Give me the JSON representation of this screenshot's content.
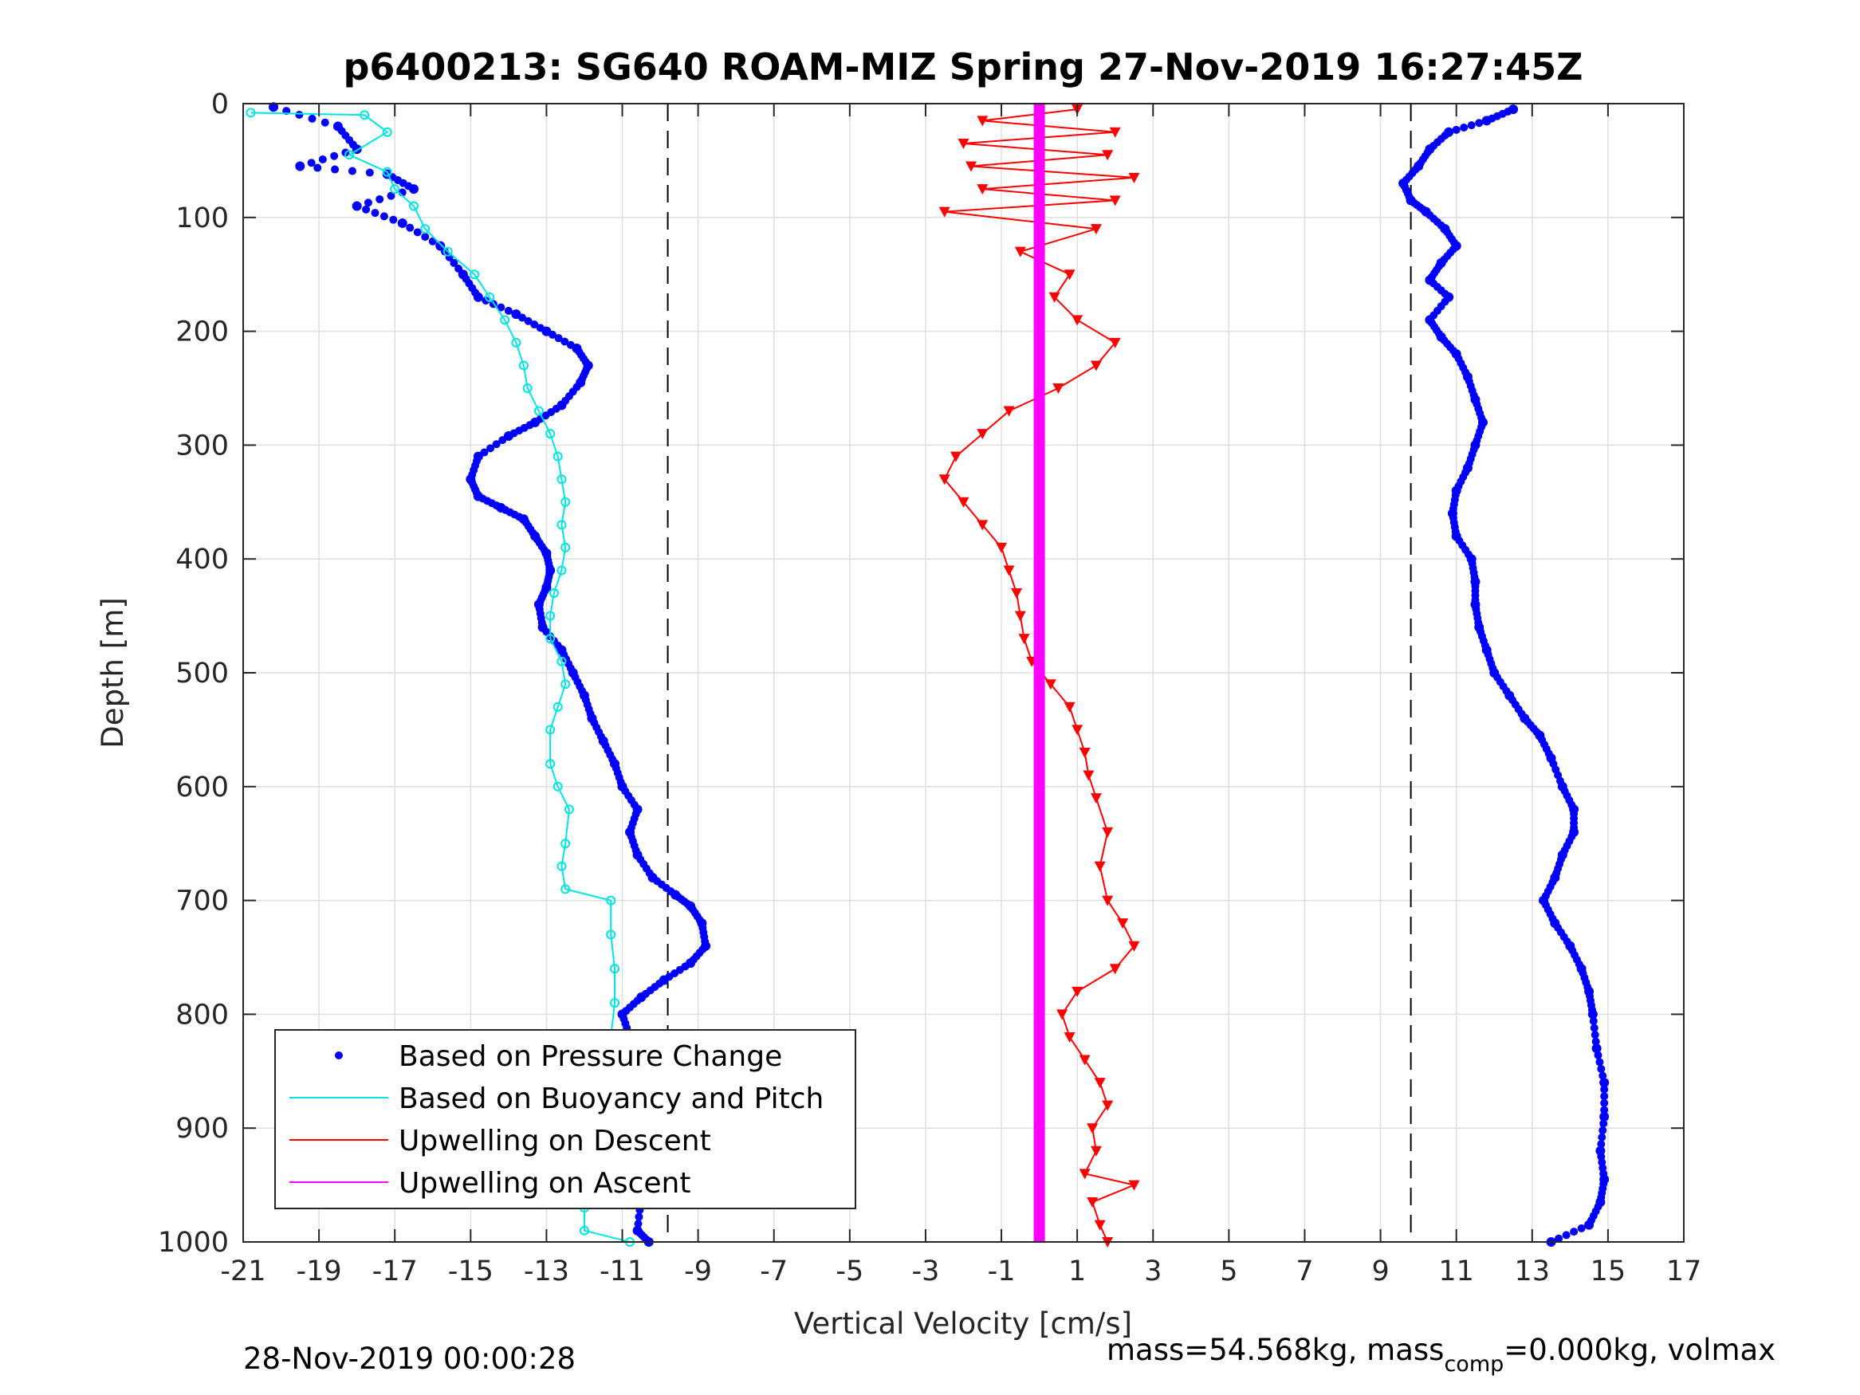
{
  "chart_data": {
    "type": "scatter",
    "title": "p6400213: SG640 ROAM-MIZ Spring 27-Nov-2019 16:27:45Z",
    "xlabel": "Vertical Velocity [cm/s]",
    "ylabel": "Depth [m]",
    "xlim": [
      -21,
      17
    ],
    "ylim": [
      0,
      1000
    ],
    "y_reversed": true,
    "grid": true,
    "x_ticks": [
      -21,
      -19,
      -17,
      -15,
      -13,
      -11,
      -9,
      -7,
      -5,
      -3,
      -1,
      1,
      3,
      5,
      7,
      9,
      11,
      13,
      15,
      17
    ],
    "y_ticks": [
      0,
      100,
      200,
      300,
      400,
      500,
      600,
      700,
      800,
      900,
      1000
    ],
    "x_tick_labels": [
      "-21",
      "-19",
      "-17",
      "-15",
      "-13",
      "-11",
      "-9",
      "-7",
      "-5",
      "-3",
      "-1",
      "1",
      "3",
      "5",
      "7",
      "9",
      "11",
      "13",
      "15",
      "17"
    ],
    "y_tick_labels": [
      "0",
      "100",
      "200",
      "300",
      "400",
      "500",
      "600",
      "700",
      "800",
      "900",
      "1000"
    ],
    "reference_lines_x": [
      -9.8,
      9.8
    ],
    "legend_position": "bottom-left",
    "series": [
      {
        "name": "Based on Pressure Change",
        "style": "dots",
        "color": "#0000ff",
        "points": [
          [
            -20.2,
            3
          ],
          [
            -18.5,
            20
          ],
          [
            -18.0,
            40
          ],
          [
            -19.5,
            55
          ],
          [
            -17.2,
            62
          ],
          [
            -16.5,
            75
          ],
          [
            -18.0,
            90
          ],
          [
            -16.8,
            105
          ],
          [
            -15.8,
            125
          ],
          [
            -15.2,
            150
          ],
          [
            -14.8,
            170
          ],
          [
            -13.8,
            185
          ],
          [
            -13.0,
            200
          ],
          [
            -12.2,
            215
          ],
          [
            -11.9,
            230
          ],
          [
            -12.1,
            245
          ],
          [
            -12.6,
            265
          ],
          [
            -13.3,
            280
          ],
          [
            -14.0,
            292
          ],
          [
            -14.8,
            310
          ],
          [
            -15.0,
            330
          ],
          [
            -14.8,
            345
          ],
          [
            -14.2,
            355
          ],
          [
            -13.6,
            365
          ],
          [
            -13.3,
            380
          ],
          [
            -13.0,
            395
          ],
          [
            -12.9,
            410
          ],
          [
            -13.0,
            425
          ],
          [
            -13.2,
            440
          ],
          [
            -13.1,
            460
          ],
          [
            -12.6,
            480
          ],
          [
            -12.3,
            500
          ],
          [
            -12.0,
            520
          ],
          [
            -11.8,
            540
          ],
          [
            -11.5,
            560
          ],
          [
            -11.2,
            580
          ],
          [
            -11.0,
            600
          ],
          [
            -10.6,
            620
          ],
          [
            -10.8,
            640
          ],
          [
            -10.6,
            660
          ],
          [
            -10.2,
            680
          ],
          [
            -9.6,
            695
          ],
          [
            -9.2,
            705
          ],
          [
            -8.9,
            720
          ],
          [
            -8.8,
            740
          ],
          [
            -9.2,
            755
          ],
          [
            -9.9,
            770
          ],
          [
            -10.5,
            785
          ],
          [
            -11.0,
            800
          ],
          [
            -10.8,
            820
          ],
          [
            -10.4,
            845
          ],
          [
            -10.6,
            865
          ],
          [
            -10.2,
            890
          ],
          [
            -10.5,
            910
          ],
          [
            -10.3,
            935
          ],
          [
            -10.5,
            960
          ],
          [
            -10.6,
            990
          ],
          [
            -10.3,
            1000
          ]
        ]
      },
      {
        "name": "Based on Pressure Change",
        "style": "dots",
        "color": "#0000ff",
        "points": [
          [
            12.5,
            5
          ],
          [
            11.8,
            15
          ],
          [
            10.8,
            25
          ],
          [
            10.3,
            40
          ],
          [
            10.0,
            55
          ],
          [
            9.6,
            70
          ],
          [
            9.8,
            85
          ],
          [
            10.2,
            95
          ],
          [
            10.7,
            110
          ],
          [
            11.0,
            125
          ],
          [
            10.6,
            140
          ],
          [
            10.3,
            155
          ],
          [
            10.8,
            170
          ],
          [
            10.3,
            190
          ],
          [
            10.6,
            205
          ],
          [
            11.0,
            220
          ],
          [
            11.3,
            240
          ],
          [
            11.5,
            260
          ],
          [
            11.7,
            280
          ],
          [
            11.5,
            300
          ],
          [
            11.3,
            320
          ],
          [
            11.0,
            340
          ],
          [
            10.9,
            360
          ],
          [
            11.0,
            380
          ],
          [
            11.4,
            400
          ],
          [
            11.5,
            420
          ],
          [
            11.5,
            440
          ],
          [
            11.6,
            460
          ],
          [
            11.8,
            480
          ],
          [
            12.0,
            500
          ],
          [
            12.4,
            520
          ],
          [
            12.8,
            540
          ],
          [
            13.2,
            555
          ],
          [
            13.5,
            575
          ],
          [
            13.8,
            600
          ],
          [
            14.1,
            620
          ],
          [
            14.1,
            640
          ],
          [
            13.8,
            660
          ],
          [
            13.6,
            680
          ],
          [
            13.3,
            700
          ],
          [
            13.6,
            720
          ],
          [
            14.0,
            740
          ],
          [
            14.3,
            760
          ],
          [
            14.5,
            780
          ],
          [
            14.6,
            800
          ],
          [
            14.7,
            830
          ],
          [
            14.9,
            860
          ],
          [
            14.9,
            890
          ],
          [
            14.8,
            920
          ],
          [
            14.9,
            945
          ],
          [
            14.8,
            965
          ],
          [
            14.5,
            985
          ],
          [
            13.5,
            1000
          ]
        ]
      },
      {
        "name": "Based on Buoyancy and Pitch",
        "style": "line-markers",
        "color": "#00e6e6",
        "points": [
          [
            -20.8,
            8
          ],
          [
            -17.8,
            10
          ],
          [
            -17.2,
            25
          ],
          [
            -18.2,
            45
          ],
          [
            -17.2,
            60
          ],
          [
            -17.0,
            75
          ],
          [
            -16.5,
            90
          ],
          [
            -16.2,
            110
          ],
          [
            -15.6,
            130
          ],
          [
            -14.9,
            150
          ],
          [
            -14.5,
            170
          ],
          [
            -14.1,
            190
          ],
          [
            -13.8,
            210
          ],
          [
            -13.6,
            230
          ],
          [
            -13.5,
            250
          ],
          [
            -13.2,
            270
          ],
          [
            -12.9,
            290
          ],
          [
            -12.7,
            310
          ],
          [
            -12.6,
            330
          ],
          [
            -12.5,
            350
          ],
          [
            -12.6,
            370
          ],
          [
            -12.5,
            390
          ],
          [
            -12.6,
            410
          ],
          [
            -12.8,
            430
          ],
          [
            -12.9,
            450
          ],
          [
            -12.9,
            470
          ],
          [
            -12.6,
            490
          ],
          [
            -12.5,
            510
          ],
          [
            -12.7,
            530
          ],
          [
            -12.9,
            550
          ],
          [
            -12.9,
            580
          ],
          [
            -12.7,
            600
          ],
          [
            -12.4,
            620
          ],
          [
            -12.5,
            650
          ],
          [
            -12.6,
            670
          ],
          [
            -12.5,
            690
          ],
          [
            -11.3,
            700
          ],
          [
            -11.3,
            730
          ],
          [
            -11.2,
            760
          ],
          [
            -11.2,
            790
          ],
          [
            -11.3,
            820
          ],
          [
            -11.6,
            850
          ],
          [
            -11.9,
            880
          ],
          [
            -12.0,
            910
          ],
          [
            -12.1,
            940
          ],
          [
            -12.0,
            970
          ],
          [
            -12.0,
            990
          ],
          [
            -10.8,
            1000
          ]
        ]
      },
      {
        "name": "Upwelling on Descent",
        "style": "line-triangles",
        "color": "#ff0000",
        "points": [
          [
            1.0,
            5
          ],
          [
            -1.5,
            15
          ],
          [
            2.0,
            25
          ],
          [
            -2.0,
            35
          ],
          [
            1.8,
            45
          ],
          [
            -1.8,
            55
          ],
          [
            2.5,
            65
          ],
          [
            -1.5,
            75
          ],
          [
            2.0,
            85
          ],
          [
            -2.5,
            95
          ],
          [
            1.5,
            110
          ],
          [
            -0.5,
            130
          ],
          [
            0.8,
            150
          ],
          [
            0.4,
            170
          ],
          [
            1.0,
            190
          ],
          [
            2.0,
            210
          ],
          [
            1.5,
            230
          ],
          [
            0.5,
            250
          ],
          [
            -0.8,
            270
          ],
          [
            -1.5,
            290
          ],
          [
            -2.2,
            310
          ],
          [
            -2.5,
            330
          ],
          [
            -2.0,
            350
          ],
          [
            -1.5,
            370
          ],
          [
            -1.0,
            390
          ],
          [
            -0.8,
            410
          ],
          [
            -0.6,
            430
          ],
          [
            -0.5,
            450
          ],
          [
            -0.4,
            470
          ],
          [
            -0.2,
            490
          ],
          [
            0.3,
            510
          ],
          [
            0.8,
            530
          ],
          [
            1.0,
            550
          ],
          [
            1.2,
            570
          ],
          [
            1.3,
            590
          ],
          [
            1.5,
            610
          ],
          [
            1.8,
            640
          ],
          [
            1.6,
            670
          ],
          [
            1.8,
            700
          ],
          [
            2.2,
            720
          ],
          [
            2.5,
            740
          ],
          [
            2.0,
            760
          ],
          [
            1.0,
            780
          ],
          [
            0.6,
            800
          ],
          [
            0.8,
            820
          ],
          [
            1.2,
            840
          ],
          [
            1.6,
            860
          ],
          [
            1.8,
            880
          ],
          [
            1.4,
            900
          ],
          [
            1.5,
            920
          ],
          [
            1.2,
            940
          ],
          [
            2.5,
            950
          ],
          [
            1.4,
            965
          ],
          [
            1.6,
            985
          ],
          [
            1.8,
            1000
          ]
        ]
      },
      {
        "name": "Upwelling on Ascent",
        "style": "line",
        "color": "#ff00ff",
        "points": [
          [
            0.0,
            0
          ],
          [
            0.0,
            1000
          ]
        ]
      }
    ]
  },
  "footer": {
    "timestamp": "28-Nov-2019 00:00:28",
    "mass_text_1": "mass=54.568kg, mass",
    "mass_sub": "comp",
    "mass_text_2": "=0.000kg, volmax"
  },
  "colors": {
    "pressure": "#0000ff",
    "buoyancy": "#00e6e6",
    "descent": "#ff0000",
    "ascent": "#ff00ff",
    "grid": "#dfdfdf",
    "axes": "#262626"
  }
}
